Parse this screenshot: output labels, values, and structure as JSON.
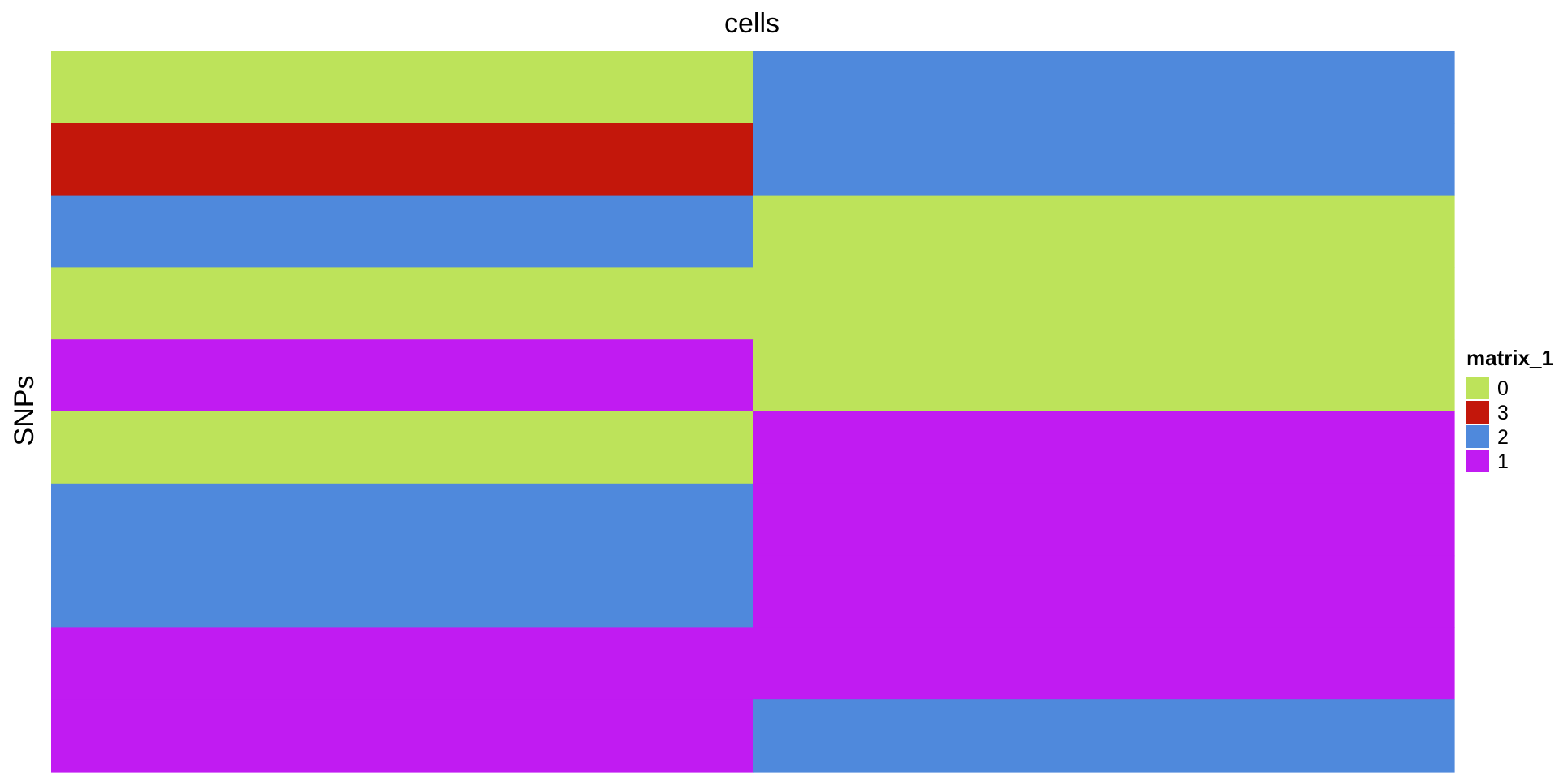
{
  "chart_data": {
    "type": "heatmap",
    "title": "cells",
    "xlabel": "",
    "ylabel": "SNPs",
    "columns": 2,
    "rows": 10,
    "matrix": [
      [
        0,
        2
      ],
      [
        3,
        2
      ],
      [
        2,
        0
      ],
      [
        0,
        0
      ],
      [
        1,
        0
      ],
      [
        0,
        1
      ],
      [
        2,
        1
      ],
      [
        2,
        1
      ],
      [
        1,
        1
      ],
      [
        1,
        2
      ]
    ],
    "legend": {
      "title": "matrix_1",
      "placement": "right",
      "entries": [
        {
          "label": "0",
          "value": 0,
          "color": "#bde35a"
        },
        {
          "label": "3",
          "value": 3,
          "color": "#c3170b"
        },
        {
          "label": "2",
          "value": 2,
          "color": "#4f89dc"
        },
        {
          "label": "1",
          "value": 1,
          "color": "#c11bf2"
        }
      ]
    }
  }
}
